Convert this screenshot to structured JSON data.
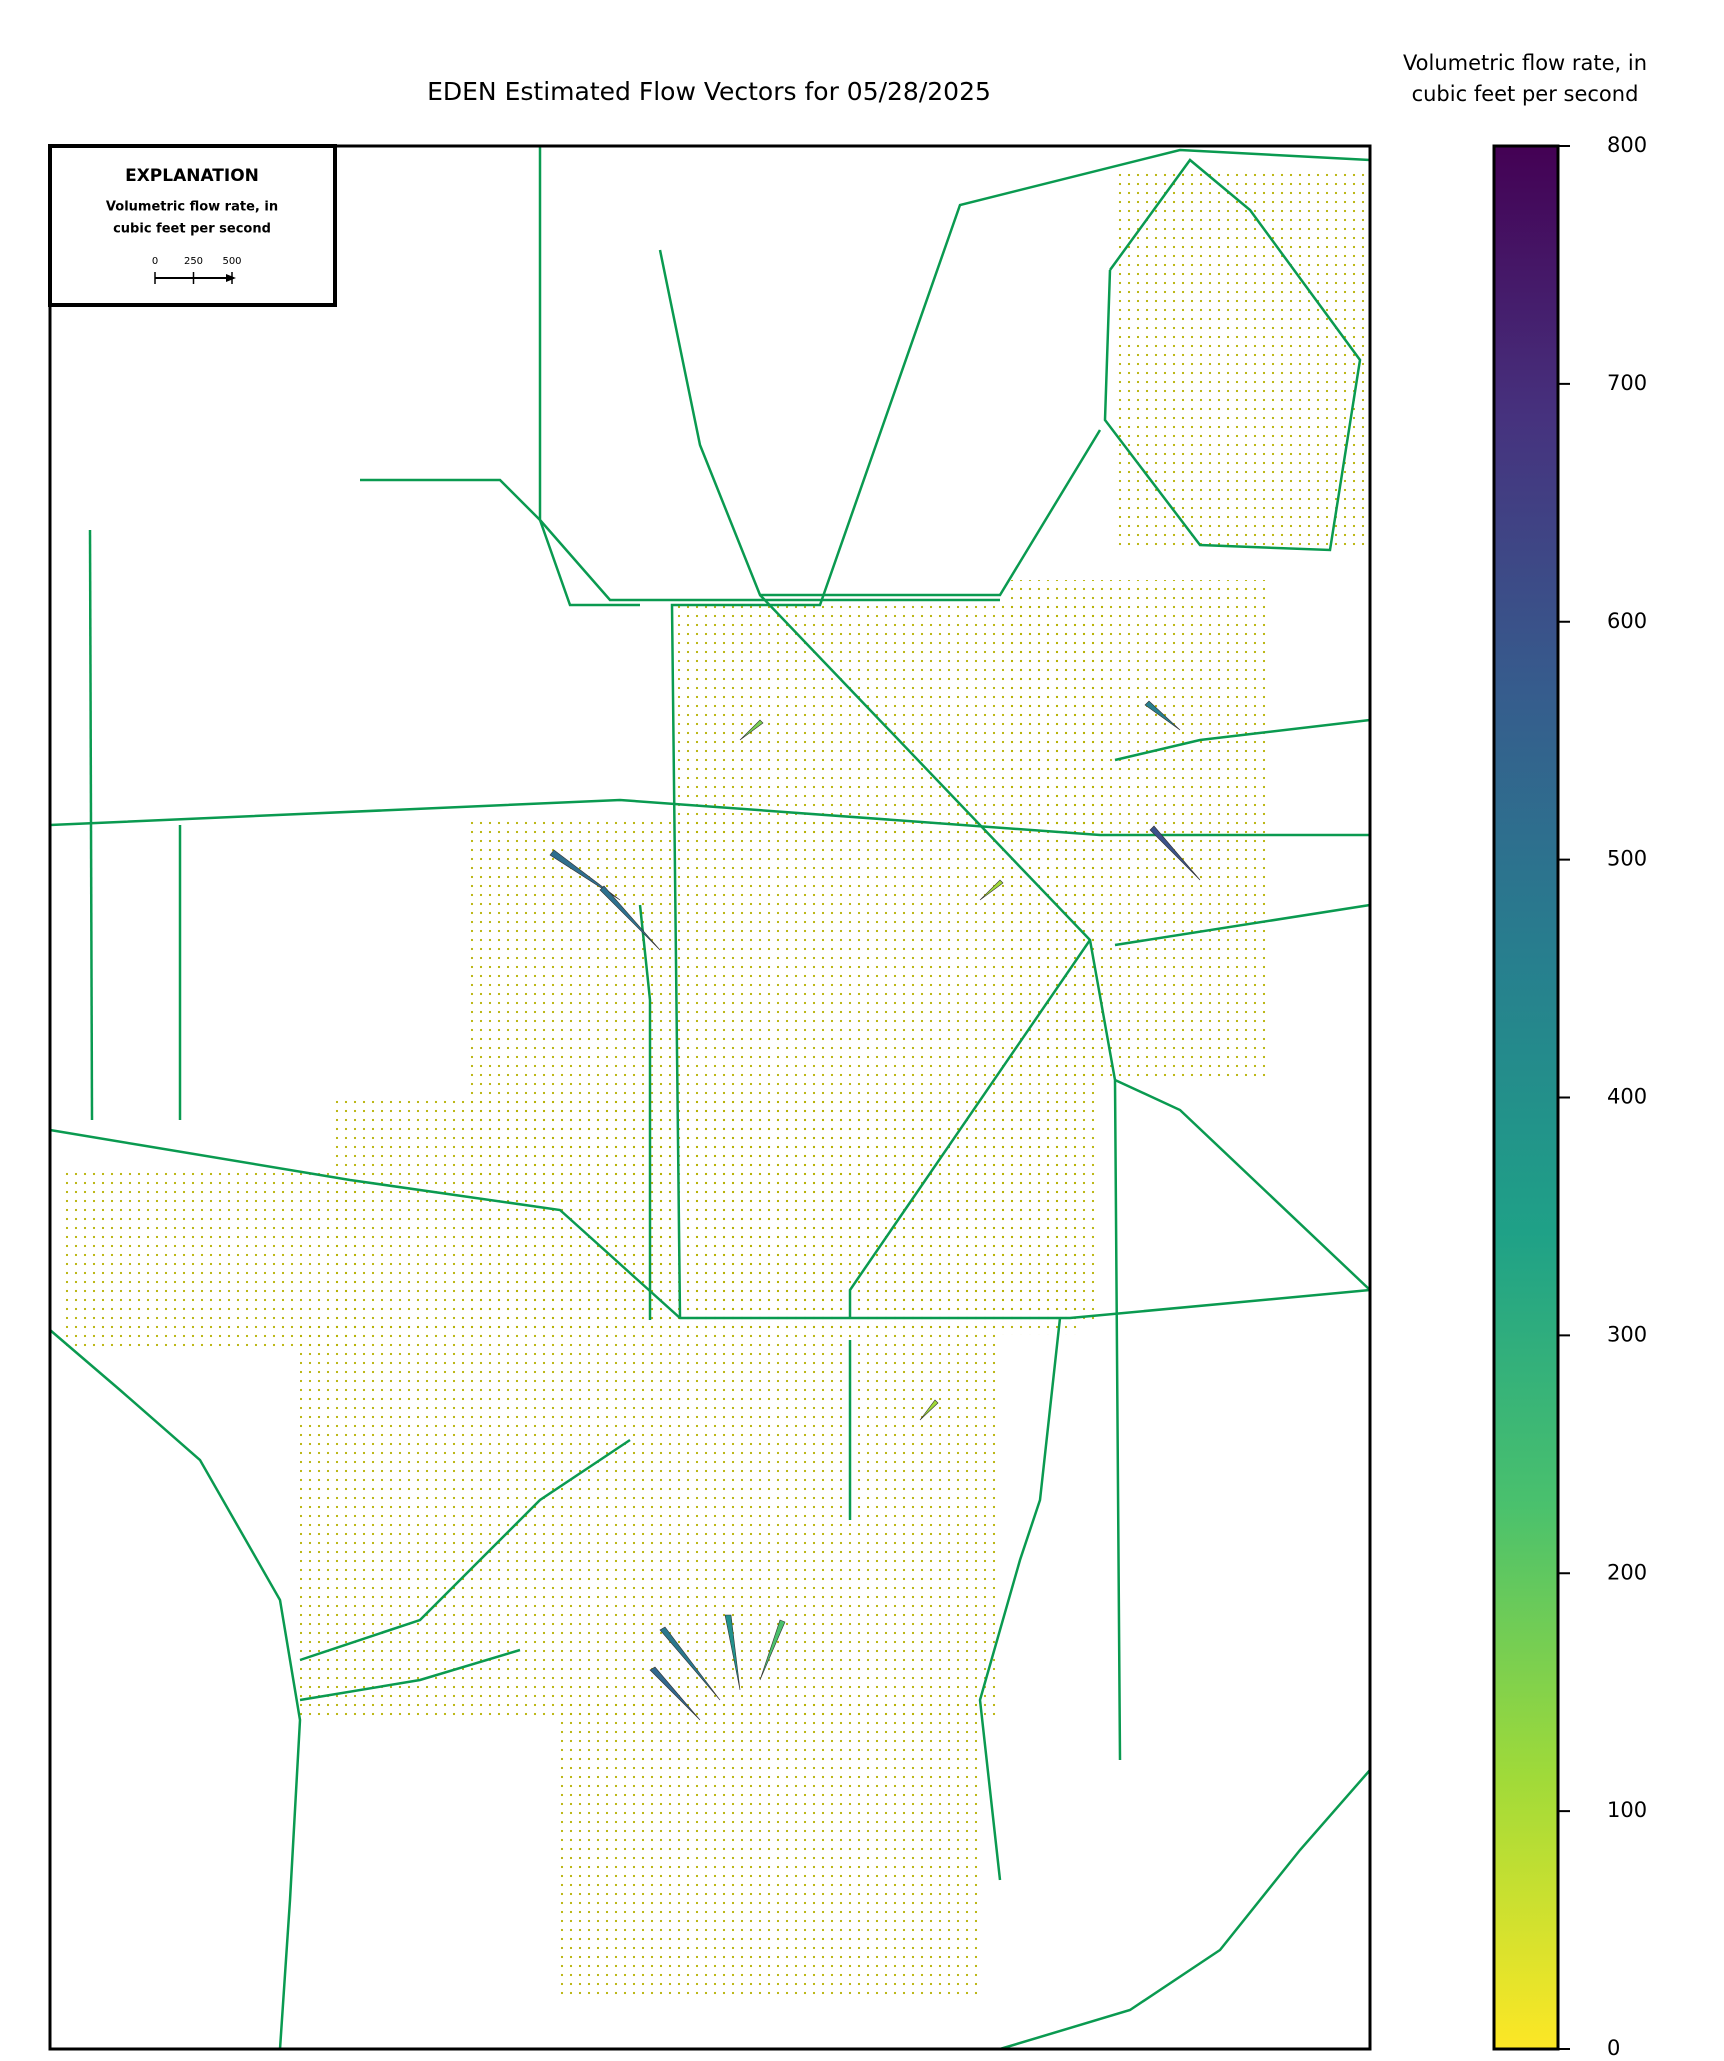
{
  "title": "EDEN Estimated Flow Vectors for 05/28/2025",
  "colorbar": {
    "title_lines": [
      "Volumetric flow rate, in",
      "cubic feet per second"
    ],
    "range": [
      0,
      800
    ],
    "ticks": [
      0,
      100,
      200,
      300,
      400,
      500,
      600,
      700,
      800
    ],
    "colormap": [
      "#fde725",
      "#a0da39",
      "#4ac16d",
      "#1fa187",
      "#277f8e",
      "#365c8d",
      "#46327e",
      "#440154"
    ]
  },
  "explanation": {
    "heading": "EXPLANATION",
    "label_lines": [
      "Volumetric flow rate, in",
      "cubic feet per second"
    ],
    "scale_ticks": [
      0,
      250,
      500
    ]
  }
}
